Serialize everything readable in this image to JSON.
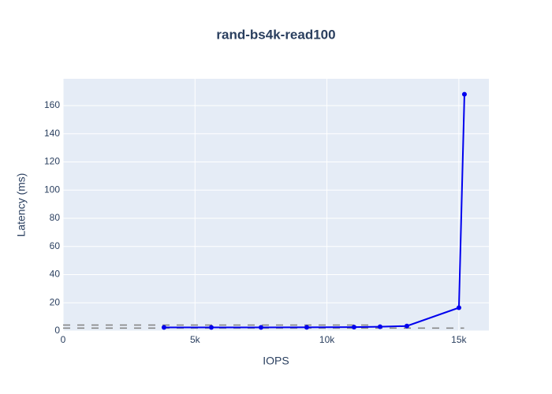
{
  "chart_data": {
    "type": "line",
    "title": "rand-bs4k-read100",
    "x_label": "IOPS",
    "y_label": "Latency (ms)",
    "xlim": [
      0,
      16140
    ],
    "ylim": [
      0,
      179
    ],
    "xticks": [
      0,
      {
        "value": 5000,
        "label": "5k"
      },
      {
        "value": 10000,
        "label": "10k"
      },
      {
        "value": 15000,
        "label": "15k"
      }
    ],
    "yticks": [
      0,
      20,
      40,
      60,
      80,
      100,
      120,
      140,
      160
    ],
    "grid": true,
    "series": [
      {
        "color": "#808080",
        "mode": "lines",
        "dash": true,
        "x": [
          0,
          11700
        ],
        "values": [
          4.2,
          4.2
        ]
      },
      {
        "color": "#808080",
        "mode": "lines",
        "dash": true,
        "x": [
          0,
          15200
        ],
        "values": [
          2,
          2
        ]
      },
      {
        "color": "#0000ee",
        "mode": "lines+markers",
        "dash": false,
        "x": [
          3825,
          5619,
          7501,
          9235,
          11028,
          12014,
          13030,
          15003,
          15212
        ],
        "values": [
          2.5,
          2.5,
          2.5,
          2.6,
          2.7,
          3.0,
          3.5,
          16.5,
          168
        ]
      }
    ]
  }
}
